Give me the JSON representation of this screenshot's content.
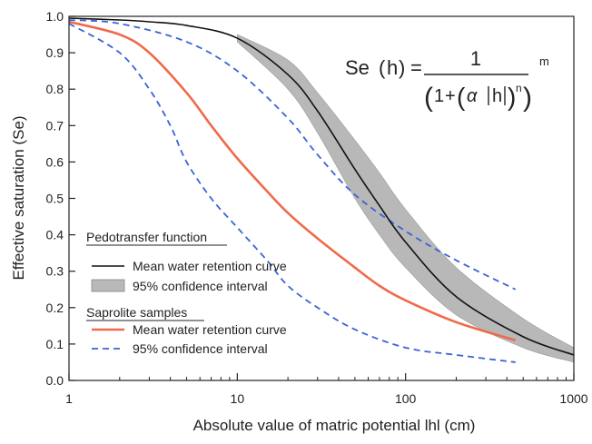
{
  "chart_data": {
    "type": "line",
    "xscale": "log",
    "xlim": [
      1,
      1000
    ],
    "ylim": [
      0,
      1
    ],
    "xlabel": "Absolute value of matric potential  lhl (cm)",
    "ylabel": "Effective saturation (Se)",
    "xticks": [
      1,
      10,
      100,
      1000
    ],
    "xtick_labels": [
      "1",
      "10",
      "100",
      "1000"
    ],
    "yticks": [
      0,
      0.1,
      0.2,
      0.3,
      0.4,
      0.5,
      0.6,
      0.7,
      0.8,
      0.9,
      1.0
    ],
    "ytick_labels": [
      "0.0",
      "0.1",
      "0.2",
      "0.3",
      "0.4",
      "0.5",
      "0.6",
      "0.7",
      "0.8",
      "0.9",
      "1.0"
    ],
    "grid": false,
    "legend_placement": "bottom-left",
    "colors": {
      "ptf": "#111111",
      "band": "#b8b8b8",
      "sap": "#ef6a4a",
      "ci": "#3a63d6"
    },
    "series": [
      {
        "id": "ptf_mean",
        "name": "Mean water retention curve",
        "group": "Pedotransfer function",
        "style": "solid",
        "x": [
          1,
          2,
          3,
          5,
          10,
          20,
          30,
          50,
          70,
          100,
          200,
          500,
          1000
        ],
        "y": [
          0.995,
          0.99,
          0.985,
          0.975,
          0.94,
          0.84,
          0.74,
          0.58,
          0.48,
          0.38,
          0.23,
          0.12,
          0.07
        ]
      },
      {
        "id": "ptf_ci",
        "name": "95% confidence interval",
        "group": "Pedotransfer function",
        "style": "band",
        "x": [
          10,
          20,
          30,
          50,
          70,
          100,
          200,
          500,
          1000
        ],
        "y_lower": [
          0.93,
          0.8,
          0.68,
          0.5,
          0.4,
          0.31,
          0.18,
          0.09,
          0.05
        ],
        "y_upper": [
          0.95,
          0.88,
          0.79,
          0.66,
          0.57,
          0.47,
          0.31,
          0.17,
          0.09
        ]
      },
      {
        "id": "sap_mean",
        "name": "Mean water retention curve",
        "group": "Saprolite samples",
        "style": "solid",
        "x": [
          1,
          2,
          3,
          5,
          7,
          10,
          15,
          20,
          30,
          50,
          70,
          100,
          200,
          450
        ],
        "y": [
          0.985,
          0.95,
          0.9,
          0.79,
          0.7,
          0.61,
          0.52,
          0.46,
          0.39,
          0.31,
          0.26,
          0.22,
          0.16,
          0.11
        ]
      },
      {
        "id": "sap_ci_upper",
        "name": "95% confidence interval",
        "group": "Saprolite samples",
        "style": "dashed",
        "x": [
          1,
          2,
          5,
          10,
          20,
          30,
          50,
          100,
          200,
          450
        ],
        "y": [
          0.99,
          0.98,
          0.93,
          0.85,
          0.72,
          0.62,
          0.51,
          0.41,
          0.33,
          0.25
        ]
      },
      {
        "id": "sap_ci_lower",
        "name": "95% confidence interval",
        "group": "Saprolite samples",
        "style": "dashed",
        "x": [
          1,
          2,
          3,
          4,
          5,
          7,
          10,
          15,
          20,
          30,
          50,
          100,
          200,
          450
        ],
        "y": [
          0.98,
          0.9,
          0.8,
          0.7,
          0.6,
          0.5,
          0.42,
          0.33,
          0.26,
          0.2,
          0.14,
          0.09,
          0.07,
          0.05
        ]
      }
    ],
    "legend": {
      "group1_title": "Pedotransfer function",
      "group1_line": "Mean water retention curve",
      "group1_band": "95% confidence interval",
      "group2_title": "Saprolite samples",
      "group2_line": "Mean water retention curve",
      "group2_dash": "95% confidence interval"
    },
    "equation": {
      "lhs_se": "Se",
      "lhs_h": "h",
      "equals": "=",
      "numerator": "1",
      "exponent": "m",
      "den_one": "1",
      "den_plus": "+",
      "den_alpha": "α",
      "den_abs_h": "h",
      "den_n": "n"
    }
  }
}
